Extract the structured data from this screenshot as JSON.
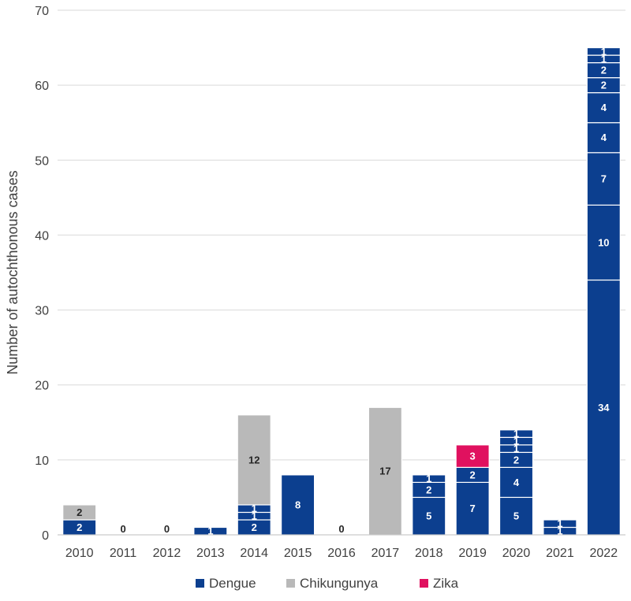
{
  "chart_data": {
    "type": "bar",
    "stacked": true,
    "title": "",
    "xlabel": "",
    "ylabel": "Number of autochthonous cases",
    "ylim": [
      0,
      70
    ],
    "yticks": [
      0,
      10,
      20,
      30,
      40,
      50,
      60,
      70
    ],
    "grid": true,
    "legend_position": "bottom",
    "categories": [
      "2010",
      "2011",
      "2012",
      "2013",
      "2014",
      "2015",
      "2016",
      "2017",
      "2018",
      "2019",
      "2020",
      "2021",
      "2022"
    ],
    "series": [
      {
        "name": "Dengue",
        "color": "#0c3f8f"
      },
      {
        "name": "Chikungunya",
        "color": "#b9b9b9"
      },
      {
        "name": "Zika",
        "color": "#e0115f"
      }
    ],
    "bars": [
      {
        "year": "2010",
        "total": 4,
        "segments": [
          {
            "series": "Dengue",
            "value": 2,
            "label": "2"
          },
          {
            "series": "Chikungunya",
            "value": 2,
            "label": "2"
          }
        ]
      },
      {
        "year": "2011",
        "total": 0,
        "zero_label": "0",
        "segments": []
      },
      {
        "year": "2012",
        "total": 0,
        "zero_label": "0",
        "segments": []
      },
      {
        "year": "2013",
        "total": 1,
        "segments": [
          {
            "series": "Dengue",
            "value": 1,
            "label": "1"
          }
        ]
      },
      {
        "year": "2014",
        "total": 16,
        "segments": [
          {
            "series": "Dengue",
            "value": 2,
            "label": "2"
          },
          {
            "series": "Dengue",
            "value": 1,
            "label": "1"
          },
          {
            "series": "Dengue",
            "value": 1,
            "label": "1"
          },
          {
            "series": "Chikungunya",
            "value": 12,
            "label": "12"
          }
        ]
      },
      {
        "year": "2015",
        "total": 8,
        "segments": [
          {
            "series": "Dengue",
            "value": 8,
            "label": "8"
          }
        ]
      },
      {
        "year": "2016",
        "total": 0,
        "zero_label": "0",
        "segments": []
      },
      {
        "year": "2017",
        "total": 17,
        "segments": [
          {
            "series": "Chikungunya",
            "value": 17,
            "label": "17"
          }
        ]
      },
      {
        "year": "2018",
        "total": 8,
        "segments": [
          {
            "series": "Dengue",
            "value": 5,
            "label": "5"
          },
          {
            "series": "Dengue",
            "value": 2,
            "label": "2"
          },
          {
            "series": "Dengue",
            "value": 1,
            "label": "1"
          }
        ]
      },
      {
        "year": "2019",
        "total": 12,
        "segments": [
          {
            "series": "Dengue",
            "value": 7,
            "label": "7"
          },
          {
            "series": "Dengue",
            "value": 2,
            "label": "2"
          },
          {
            "series": "Zika",
            "value": 3,
            "label": "3"
          }
        ]
      },
      {
        "year": "2020",
        "total": 14,
        "segments": [
          {
            "series": "Dengue",
            "value": 5,
            "label": "5"
          },
          {
            "series": "Dengue",
            "value": 4,
            "label": "4"
          },
          {
            "series": "Dengue",
            "value": 2,
            "label": "2"
          },
          {
            "series": "Dengue",
            "value": 1,
            "label": "1"
          },
          {
            "series": "Dengue",
            "value": 1,
            "label": "1"
          },
          {
            "series": "Dengue",
            "value": 1,
            "label": "1"
          }
        ]
      },
      {
        "year": "2021",
        "total": 2,
        "segments": [
          {
            "series": "Dengue",
            "value": 1,
            "label": "1"
          },
          {
            "series": "Dengue",
            "value": 1,
            "label": "1"
          }
        ]
      },
      {
        "year": "2022",
        "total": 65,
        "segments": [
          {
            "series": "Dengue",
            "value": 34,
            "label": "34"
          },
          {
            "series": "Dengue",
            "value": 10,
            "label": "10"
          },
          {
            "series": "Dengue",
            "value": 7,
            "label": "7"
          },
          {
            "series": "Dengue",
            "value": 4,
            "label": "4"
          },
          {
            "series": "Dengue",
            "value": 4,
            "label": "4"
          },
          {
            "series": "Dengue",
            "value": 2,
            "label": "2"
          },
          {
            "series": "Dengue",
            "value": 2,
            "label": "2"
          },
          {
            "series": "Dengue",
            "value": 1,
            "label": "1"
          },
          {
            "series": "Dengue",
            "value": 1,
            "label": "1"
          }
        ]
      }
    ]
  }
}
